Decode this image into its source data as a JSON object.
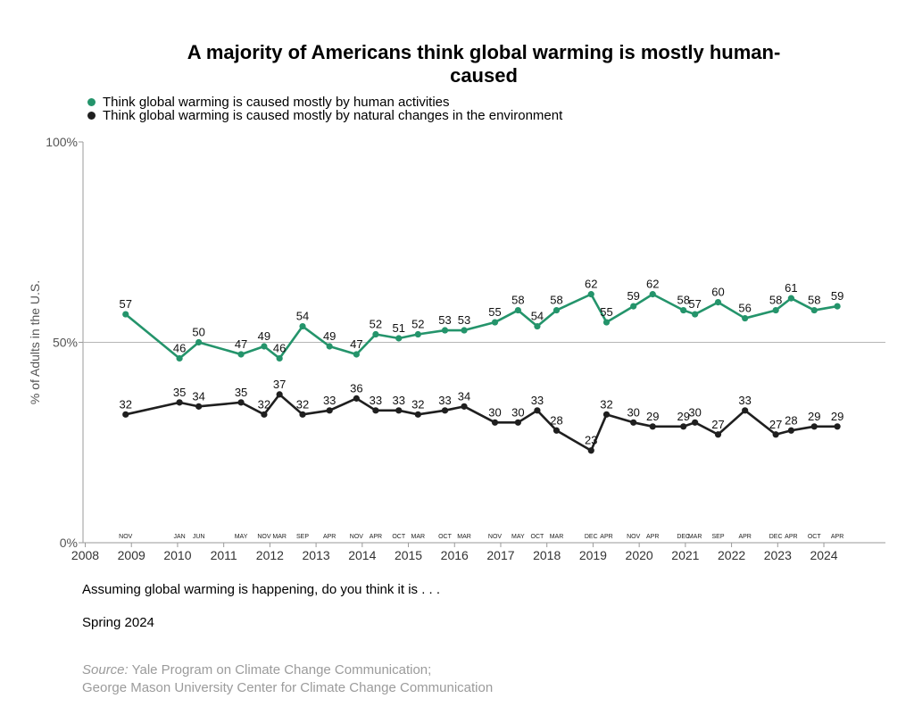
{
  "chart_data": {
    "type": "line",
    "title": "A majority of Americans think global warming is mostly human-caused",
    "ylabel": "% of Adults in the U.S.",
    "ylim": [
      0,
      100
    ],
    "yticks": [
      "0%",
      "50%",
      "100%"
    ],
    "year_ticks": [
      "2008",
      "2009",
      "2010",
      "2011",
      "2012",
      "2013",
      "2014",
      "2015",
      "2016",
      "2017",
      "2018",
      "2019",
      "2020",
      "2021",
      "2022",
      "2023",
      "2024"
    ],
    "grid": "horizontal line at 50%",
    "legend_position": "top-left",
    "x": [
      "2008-11",
      "2010-01",
      "2010-06",
      "2011-05",
      "2011-11",
      "2012-03",
      "2012-09",
      "2013-04",
      "2013-11",
      "2014-04",
      "2014-10",
      "2015-03",
      "2015-10",
      "2016-03",
      "2016-11",
      "2017-05",
      "2017-10",
      "2018-03",
      "2018-12",
      "2019-04",
      "2019-11",
      "2020-04",
      "2020-12",
      "2021-03",
      "2021-09",
      "2022-04",
      "2022-12",
      "2023-04",
      "2023-10",
      "2024-04"
    ],
    "month_labels": [
      "NOV",
      "JAN",
      "JUN",
      "MAY",
      "NOV",
      "MAR",
      "SEP",
      "APR",
      "NOV",
      "APR",
      "OCT",
      "MAR",
      "OCT",
      "MAR",
      "NOV",
      "MAY",
      "OCT",
      "MAR",
      "DEC",
      "APR",
      "NOV",
      "APR",
      "DEC",
      "MAR",
      "SEP",
      "APR",
      "DEC",
      "APR",
      "OCT",
      "APR"
    ],
    "series": [
      {
        "name": "Think global warming is caused mostly by human activities",
        "color": "#24946b",
        "values": [
          57,
          46,
          50,
          47,
          49,
          46,
          54,
          49,
          47,
          52,
          51,
          52,
          53,
          53,
          55,
          58,
          54,
          58,
          62,
          55,
          59,
          62,
          58,
          57,
          60,
          56,
          58,
          61,
          58,
          59
        ]
      },
      {
        "name": "Think global warming is caused mostly by natural changes in the environment",
        "color": "#1f1f1f",
        "values": [
          32,
          35,
          34,
          35,
          32,
          37,
          32,
          33,
          36,
          33,
          33,
          32,
          33,
          34,
          30,
          30,
          33,
          28,
          23,
          32,
          30,
          29,
          29,
          30,
          27,
          33,
          27,
          28,
          29,
          29
        ]
      }
    ]
  },
  "footer": {
    "question": "Assuming global warming is happening, do you think it is . . .",
    "date": "Spring 2024",
    "source_label": "Source:",
    "source_line1": " Yale Program on Climate Change Communication;",
    "source_line2": "George Mason University Center for Climate Change Communication"
  }
}
